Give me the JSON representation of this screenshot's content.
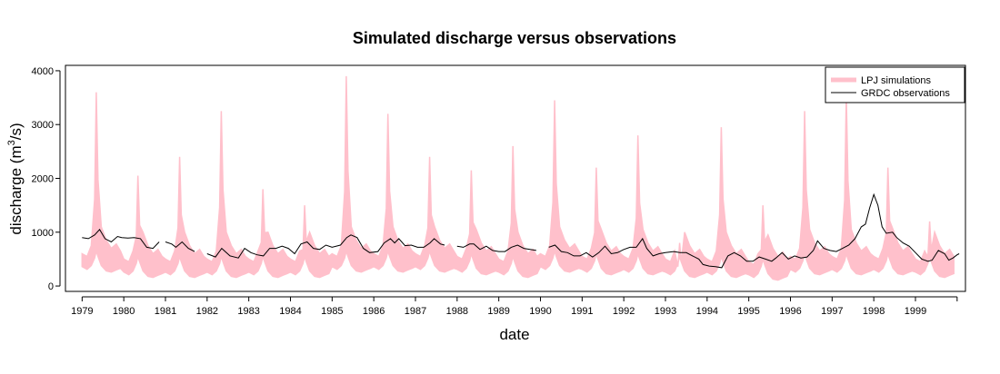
{
  "chart_data": {
    "type": "area",
    "title": "Simulated discharge versus observations",
    "xlabel": "date",
    "ylabel_main": "discharge (m",
    "ylabel_sup": "3",
    "ylabel_tail": "/s)",
    "xlim": [
      1978.6,
      2000.2
    ],
    "ylim": [
      -100,
      4100
    ],
    "x_ticks": [
      "1979",
      "1980",
      "1981",
      "1982",
      "1983",
      "1984",
      "1985",
      "1986",
      "1987",
      "1988",
      "1989",
      "1990",
      "1991",
      "1992",
      "1993",
      "1994",
      "1995",
      "1996",
      "1997",
      "1998",
      "1999"
    ],
    "y_ticks": [
      "0",
      "1000",
      "2000",
      "3000",
      "4000"
    ],
    "grid": false,
    "legend_position": "top-right",
    "colors": {
      "simulations": "#ffc0cb",
      "observations": "#000000"
    },
    "annual_peaks": [
      {
        "year": 1979,
        "peak": 3600,
        "base": 400
      },
      {
        "year": 1980,
        "peak": 2050,
        "base": 300
      },
      {
        "year": 1981,
        "peak": 2400,
        "base": 300
      },
      {
        "year": 1982,
        "peak": 3250,
        "base": 300
      },
      {
        "year": 1983,
        "peak": 1800,
        "base": 300
      },
      {
        "year": 1984,
        "peak": 1500,
        "base": 300
      },
      {
        "year": 1985,
        "peak": 3900,
        "base": 400
      },
      {
        "year": 1986,
        "peak": 3200,
        "base": 400
      },
      {
        "year": 1987,
        "peak": 2400,
        "base": 400
      },
      {
        "year": 1988,
        "peak": 2150,
        "base": 350
      },
      {
        "year": 1989,
        "peak": 2600,
        "base": 300
      },
      {
        "year": 1990,
        "peak": 3450,
        "base": 400
      },
      {
        "year": 1991,
        "peak": 2200,
        "base": 350
      },
      {
        "year": 1992,
        "peak": 2800,
        "base": 350
      },
      {
        "year": 1993,
        "peak": 800,
        "base": 300
      },
      {
        "year": 1994,
        "peak": 2950,
        "base": 300
      },
      {
        "year": 1995,
        "peak": 1500,
        "base": 250
      },
      {
        "year": 1996,
        "peak": 3250,
        "base": 350
      },
      {
        "year": 1997,
        "peak": 3550,
        "base": 350
      },
      {
        "year": 1998,
        "peak": 2200,
        "base": 350
      },
      {
        "year": 1999,
        "peak": 1200,
        "base": 300
      }
    ],
    "series": [
      {
        "name": "LPJ simulations",
        "style": "band"
      },
      {
        "name": "GRDC observations",
        "style": "line",
        "points": [
          [
            1979.0,
            900
          ],
          [
            1979.15,
            880
          ],
          [
            1979.3,
            950
          ],
          [
            1979.42,
            1050
          ],
          [
            1979.55,
            880
          ],
          [
            1979.7,
            820
          ],
          [
            1979.85,
            920
          ],
          [
            1979.95,
            900
          ],
          [
            1980.1,
            890
          ],
          [
            1980.25,
            900
          ],
          [
            1980.4,
            880
          ],
          [
            1980.55,
            720
          ],
          [
            1980.7,
            700
          ],
          [
            1980.85,
            820
          ],
          null,
          [
            1981.0,
            820
          ],
          [
            1981.15,
            780
          ],
          [
            1981.25,
            720
          ],
          [
            1981.4,
            820
          ],
          [
            1981.55,
            700
          ],
          [
            1981.7,
            640
          ],
          null,
          [
            1982.0,
            600
          ],
          [
            1982.2,
            540
          ],
          [
            1982.35,
            700
          ],
          [
            1982.55,
            560
          ],
          [
            1982.75,
            520
          ],
          [
            1982.9,
            700
          ],
          [
            1983.05,
            620
          ],
          [
            1983.2,
            580
          ],
          [
            1983.35,
            560
          ],
          [
            1983.5,
            700
          ],
          [
            1983.65,
            700
          ],
          [
            1983.8,
            740
          ],
          [
            1983.95,
            700
          ],
          [
            1984.1,
            600
          ],
          [
            1984.25,
            780
          ],
          [
            1984.4,
            820
          ],
          [
            1984.55,
            700
          ],
          [
            1984.7,
            680
          ],
          [
            1984.85,
            760
          ],
          [
            1985.0,
            720
          ],
          [
            1985.2,
            760
          ],
          [
            1985.35,
            900
          ],
          [
            1985.45,
            950
          ],
          [
            1985.6,
            900
          ],
          [
            1985.75,
            700
          ],
          [
            1985.9,
            620
          ],
          [
            1986.1,
            640
          ],
          [
            1986.25,
            800
          ],
          [
            1986.4,
            880
          ],
          [
            1986.5,
            800
          ],
          [
            1986.6,
            880
          ],
          [
            1986.75,
            750
          ],
          [
            1986.9,
            760
          ],
          [
            1987.05,
            720
          ],
          [
            1987.2,
            720
          ],
          [
            1987.35,
            800
          ],
          [
            1987.45,
            880
          ],
          [
            1987.6,
            780
          ],
          [
            1987.7,
            760
          ],
          null,
          [
            1988.0,
            740
          ],
          [
            1988.15,
            720
          ],
          [
            1988.3,
            780
          ],
          [
            1988.4,
            780
          ],
          [
            1988.55,
            680
          ],
          [
            1988.7,
            740
          ],
          [
            1988.85,
            660
          ],
          [
            1989.0,
            640
          ],
          [
            1989.15,
            640
          ],
          [
            1989.3,
            720
          ],
          [
            1989.45,
            760
          ],
          [
            1989.6,
            700
          ],
          [
            1989.75,
            680
          ],
          [
            1989.9,
            660
          ],
          null,
          [
            1990.2,
            720
          ],
          [
            1990.35,
            760
          ],
          [
            1990.5,
            640
          ],
          [
            1990.65,
            620
          ],
          [
            1990.8,
            560
          ],
          [
            1990.95,
            560
          ],
          [
            1991.1,
            620
          ],
          [
            1991.25,
            540
          ],
          [
            1991.4,
            620
          ],
          [
            1991.55,
            740
          ],
          [
            1991.7,
            600
          ],
          [
            1991.85,
            620
          ],
          [
            1992.0,
            680
          ],
          [
            1992.15,
            720
          ],
          [
            1992.3,
            720
          ],
          [
            1992.45,
            880
          ],
          [
            1992.55,
            700
          ],
          [
            1992.7,
            560
          ],
          [
            1992.85,
            600
          ],
          [
            1993.0,
            620
          ],
          [
            1993.2,
            640
          ],
          [
            1993.35,
            620
          ],
          [
            1993.5,
            620
          ],
          [
            1993.65,
            560
          ],
          [
            1993.8,
            500
          ],
          [
            1993.9,
            400
          ],
          [
            1994.05,
            370
          ],
          [
            1994.2,
            360
          ],
          [
            1994.35,
            340
          ],
          [
            1994.5,
            560
          ],
          [
            1994.65,
            620
          ],
          [
            1994.8,
            560
          ],
          [
            1994.95,
            460
          ],
          [
            1995.1,
            460
          ],
          [
            1995.25,
            540
          ],
          [
            1995.4,
            500
          ],
          [
            1995.55,
            460
          ],
          [
            1995.65,
            520
          ],
          [
            1995.8,
            620
          ],
          [
            1995.95,
            500
          ],
          [
            1996.1,
            560
          ],
          [
            1996.25,
            520
          ],
          [
            1996.4,
            540
          ],
          [
            1996.55,
            660
          ],
          [
            1996.65,
            840
          ],
          [
            1996.8,
            700
          ],
          [
            1996.95,
            660
          ],
          [
            1997.1,
            640
          ],
          [
            1997.25,
            700
          ],
          [
            1997.4,
            760
          ],
          [
            1997.55,
            880
          ],
          [
            1997.7,
            1100
          ],
          [
            1997.8,
            1150
          ],
          [
            1997.9,
            1450
          ],
          [
            1998.0,
            1700
          ],
          [
            1998.1,
            1500
          ],
          [
            1998.2,
            1100
          ],
          [
            1998.3,
            980
          ],
          [
            1998.45,
            1000
          ],
          [
            1998.55,
            900
          ],
          [
            1998.7,
            800
          ],
          [
            1998.85,
            740
          ],
          [
            1999.0,
            620
          ],
          [
            1999.15,
            500
          ],
          [
            1999.3,
            460
          ],
          [
            1999.4,
            480
          ],
          [
            1999.55,
            660
          ],
          [
            1999.7,
            600
          ],
          [
            1999.8,
            480
          ],
          [
            1999.9,
            520
          ],
          [
            2000.0,
            580
          ],
          [
            2000.05,
            600
          ]
        ]
      }
    ]
  }
}
